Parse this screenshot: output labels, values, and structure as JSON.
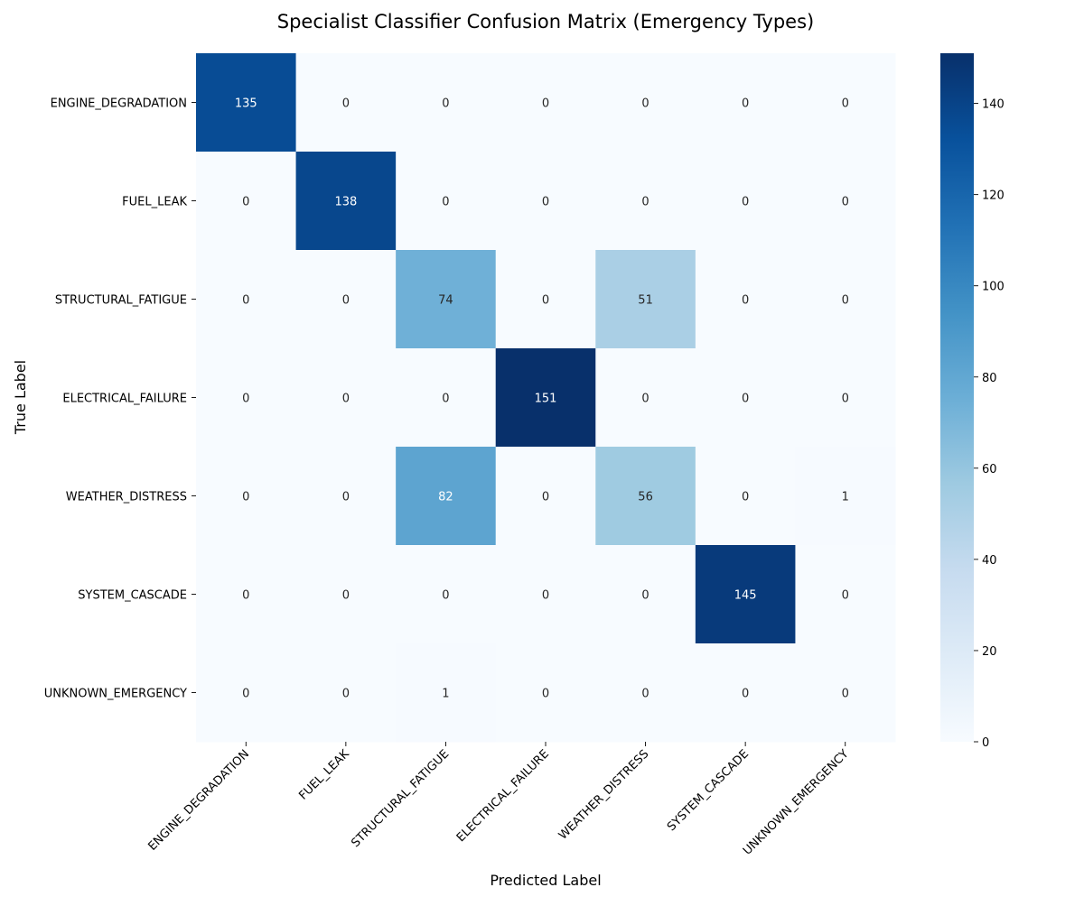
{
  "chart_data": {
    "type": "heatmap",
    "title": "Specialist Classifier Confusion Matrix (Emergency Types)",
    "xlabel": "Predicted Label",
    "ylabel": "True Label",
    "row_labels": [
      "ENGINE_DEGRADATION",
      "FUEL_LEAK",
      "STRUCTURAL_FATIGUE",
      "ELECTRICAL_FAILURE",
      "WEATHER_DISTRESS",
      "SYSTEM_CASCADE",
      "UNKNOWN_EMERGENCY"
    ],
    "col_labels": [
      "ENGINE_DEGRADATION",
      "FUEL_LEAK",
      "STRUCTURAL_FATIGUE",
      "ELECTRICAL_FAILURE",
      "WEATHER_DISTRESS",
      "SYSTEM_CASCADE",
      "UNKNOWN_EMERGENCY"
    ],
    "values": [
      [
        135,
        0,
        0,
        0,
        0,
        0,
        0
      ],
      [
        0,
        138,
        0,
        0,
        0,
        0,
        0
      ],
      [
        0,
        0,
        74,
        0,
        51,
        0,
        0
      ],
      [
        0,
        0,
        0,
        151,
        0,
        0,
        0
      ],
      [
        0,
        0,
        82,
        0,
        56,
        0,
        1
      ],
      [
        0,
        0,
        0,
        0,
        0,
        145,
        0
      ],
      [
        0,
        0,
        1,
        0,
        0,
        0,
        0
      ]
    ],
    "colorbar": {
      "min": 0,
      "max": 151,
      "ticks": [
        0,
        20,
        40,
        60,
        80,
        100,
        120,
        140
      ]
    },
    "colormap": "Blues",
    "annotations": true
  }
}
